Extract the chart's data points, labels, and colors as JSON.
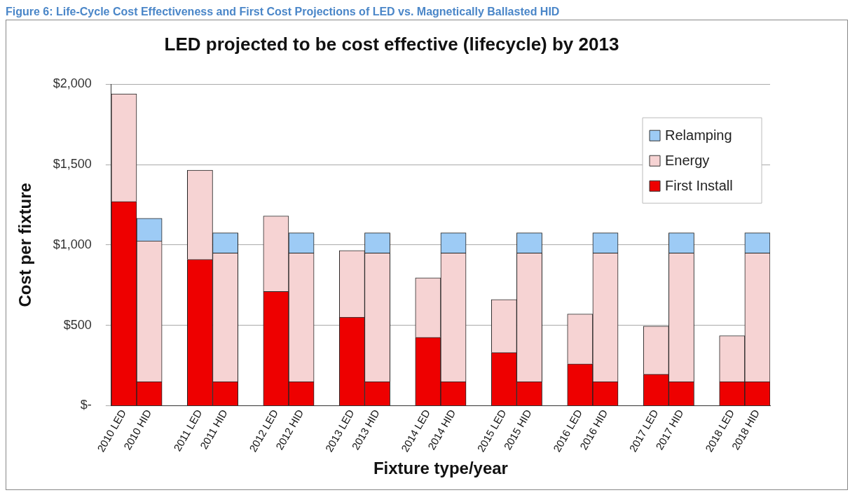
{
  "chart_data": {
    "type": "bar",
    "title": "LED projected to be cost effective (lifecycle) by 2013",
    "annotations": [
      "Figure 6: Life-Cycle Cost Effectiveness and First Cost Projections of LED vs. Magnetically Ballasted HID"
    ],
    "xlabel": "Fixture type/year",
    "ylabel": "Cost per fixture",
    "categories": [
      "2010 LED",
      "2010 HID",
      null,
      "2011 LED",
      "2011 HID",
      null,
      "2012 LED",
      "2012 HID",
      null,
      "2013 LED",
      "2013 HID",
      null,
      "2014 LED",
      "2014 HID",
      null,
      "2015 LED",
      "2015 HID",
      null,
      "2016 LED",
      "2016 HID",
      null,
      "2017 LED",
      "2017 HID",
      null,
      "2018 LED",
      "2018 HID"
    ],
    "stacked": true,
    "series": [
      {
        "name": "First Install",
        "color": "#ee0000",
        "values": [
          1270,
          150,
          null,
          910,
          150,
          null,
          710,
          150,
          null,
          550,
          150,
          null,
          425,
          150,
          null,
          330,
          150,
          null,
          260,
          150,
          null,
          195,
          150,
          null,
          150,
          150
        ]
      },
      {
        "name": "Energy",
        "color": "#f6d3d3",
        "values": [
          670,
          875,
          null,
          555,
          800,
          null,
          470,
          800,
          null,
          415,
          800,
          null,
          370,
          800,
          null,
          330,
          800,
          null,
          310,
          800,
          null,
          300,
          800,
          null,
          285,
          800
        ]
      },
      {
        "name": "Relamping",
        "color": "#9dcbf5",
        "values": [
          0,
          140,
          null,
          0,
          125,
          null,
          0,
          125,
          null,
          0,
          125,
          null,
          0,
          125,
          null,
          0,
          125,
          null,
          0,
          125,
          null,
          0,
          125,
          null,
          0,
          125
        ]
      }
    ],
    "ylim": [
      0,
      2000
    ],
    "yticks": [
      {
        "value": 0,
        "label": "$-"
      },
      {
        "value": 500,
        "label": "$500"
      },
      {
        "value": 1000,
        "label": "$1,000"
      },
      {
        "value": 1500,
        "label": "$1,500"
      },
      {
        "value": 2000,
        "label": "$2,000"
      }
    ],
    "grid": "y",
    "legend": "top right"
  }
}
